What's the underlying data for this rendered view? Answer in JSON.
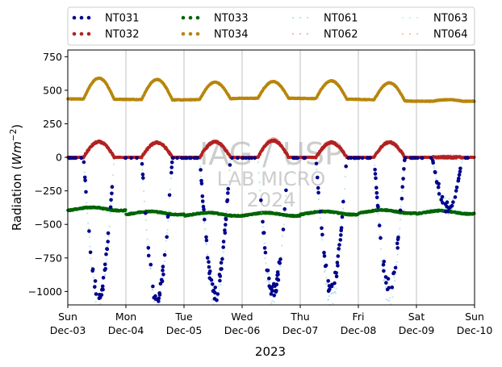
{
  "chart_data": {
    "type": "scatter",
    "ylabel_parts": [
      "Radiation (",
      "Wm",
      "−2",
      ")"
    ],
    "xlabel": "2023",
    "ylim": [
      -1100,
      800
    ],
    "yticks": [
      750,
      500,
      250,
      0,
      -250,
      -500,
      -750,
      -1000
    ],
    "ytick_labels": [
      "750",
      "500",
      "250",
      "0",
      "−250",
      "−500",
      "−750",
      "−1000"
    ],
    "xlim": [
      "2023-12-03",
      "2023-12-10"
    ],
    "xticks": [
      {
        "day": "Sun",
        "date": "Dec-03"
      },
      {
        "day": "Mon",
        "date": "Dec-04"
      },
      {
        "day": "Tue",
        "date": "Dec-05"
      },
      {
        "day": "Wed",
        "date": "Dec-06"
      },
      {
        "day": "Thu",
        "date": "Dec-07"
      },
      {
        "day": "Fri",
        "date": "Dec-08"
      },
      {
        "day": "Sat",
        "date": "Dec-09"
      },
      {
        "day": "Sun",
        "date": "Dec-10"
      }
    ],
    "grid": "x-vertical",
    "legend_placement": "top, above plot, 4 columns",
    "watermark": [
      "IAG / USP",
      "LAB MICRO",
      "2024"
    ],
    "series": [
      {
        "name": "NT031",
        "color": "#00008b",
        "style": "dots",
        "description_values": "night ~0, daytime minima near -1000 W/m2",
        "daily_min": [
          -1030,
          -1050,
          -1020,
          -1000,
          -990,
          -960,
          -360
        ]
      },
      {
        "name": "NT032",
        "color": "#b22222",
        "style": "dots",
        "daily_max": [
          115,
          110,
          115,
          125,
          110,
          112,
          0
        ]
      },
      {
        "name": "NT033",
        "color": "#006400",
        "style": "dots",
        "daily_mean": [
          -385,
          -415,
          -425,
          -425,
          -415,
          -405,
          -410
        ]
      },
      {
        "name": "NT034",
        "color": "#b8860b",
        "style": "dots",
        "night_level": [
          435,
          432,
          428,
          440,
          440,
          432,
          418
        ],
        "daily_max": [
          590,
          580,
          560,
          565,
          570,
          555,
          430
        ]
      },
      {
        "name": "NT061",
        "color": "#87ceeb",
        "style": "sparse-dots",
        "daily_min": [
          -1080,
          -1090,
          -1070,
          -1060,
          -1070,
          -1050,
          -370
        ]
      },
      {
        "name": "NT062",
        "color": "#f08080",
        "style": "sparse-dots",
        "daily_max": [
          120,
          118,
          122,
          140,
          120,
          118,
          10
        ]
      },
      {
        "name": "NT063",
        "color": "#7fffd4",
        "style": "sparse-dots",
        "daily_mean": [
          -390,
          -420,
          -430,
          -420,
          -410,
          -400,
          -400
        ]
      },
      {
        "name": "NT064",
        "color": "#f4a460",
        "style": "sparse-dots",
        "night_level": [
          440,
          436,
          432,
          444,
          444,
          436,
          422
        ],
        "daily_max": [
          595,
          585,
          565,
          570,
          575,
          560,
          432
        ]
      }
    ]
  }
}
